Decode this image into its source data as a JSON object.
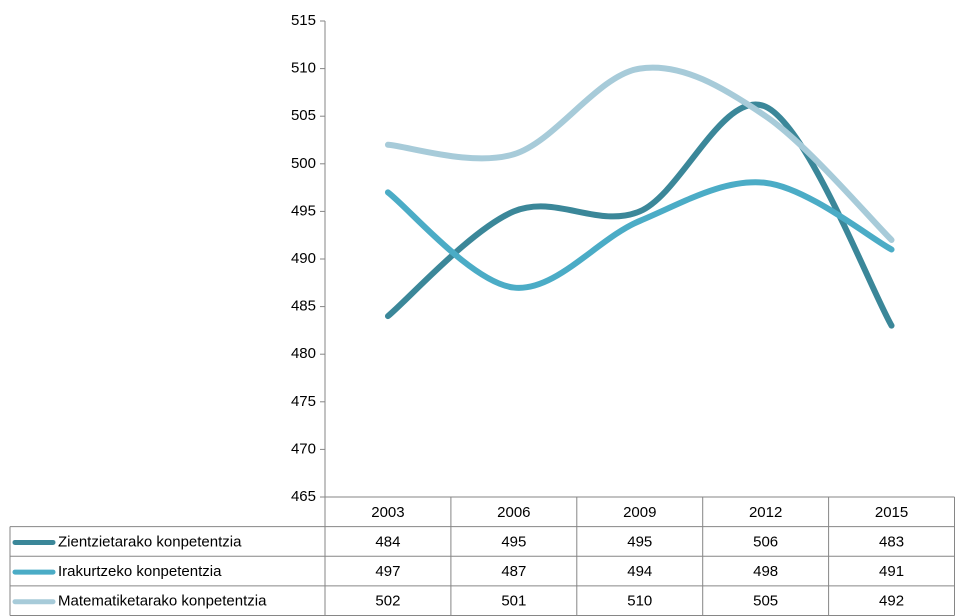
{
  "chart_data": {
    "type": "line",
    "categories": [
      "2003",
      "2006",
      "2009",
      "2012",
      "2015"
    ],
    "series": [
      {
        "name": "Zientzietarako konpetentzia",
        "color": "#3b8799",
        "values": [
          484,
          495,
          495,
          506,
          483
        ]
      },
      {
        "name": "Irakurtzeko konpetentzia",
        "color": "#4bacc6",
        "values": [
          497,
          487,
          494,
          498,
          491
        ]
      },
      {
        "name": "Matematiketarako konpetentzia",
        "color": "#a7cbd9",
        "values": [
          502,
          501,
          510,
          505,
          492
        ]
      }
    ],
    "ylim": [
      465,
      515
    ],
    "yticks": [
      465,
      470,
      475,
      480,
      485,
      490,
      495,
      500,
      505,
      510,
      515
    ],
    "smooth": true,
    "data_table": true
  }
}
